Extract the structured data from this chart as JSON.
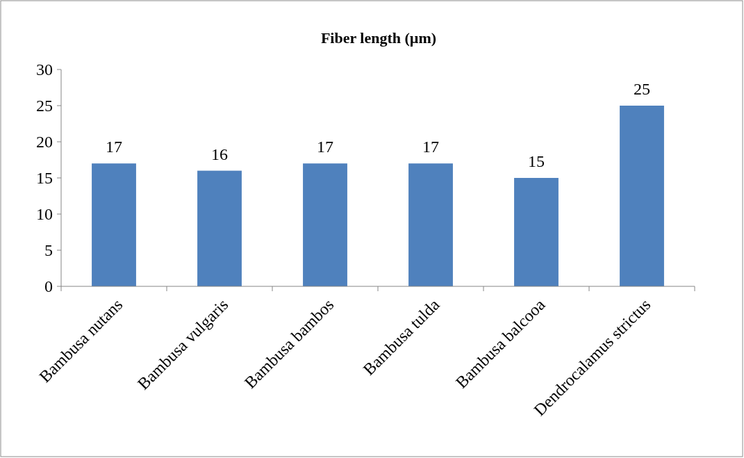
{
  "chart_data": {
    "type": "bar",
    "title": "Fiber length (µm)",
    "categories": [
      "Bambusa nutans",
      "Bambusa vulgaris",
      "Bambusa bambos",
      "Bambusa tulda",
      "Bambusa balcooa",
      "Dendrocalamus strictus"
    ],
    "values": [
      17,
      16,
      17,
      17,
      15,
      25
    ],
    "color": "#4f81bd",
    "ylim": [
      0,
      30
    ],
    "yticks": [
      0,
      5,
      10,
      15,
      20,
      25,
      30
    ],
    "grid": false,
    "data_labels": true
  }
}
